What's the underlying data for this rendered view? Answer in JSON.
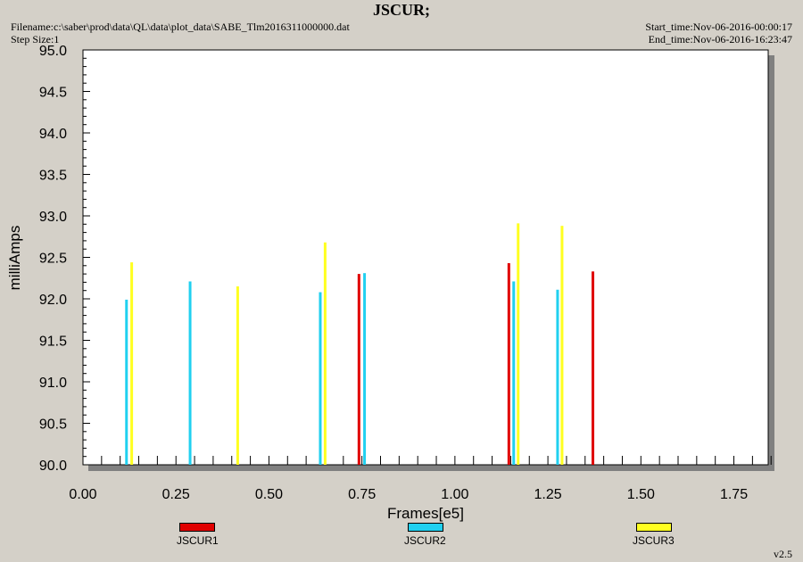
{
  "header": {
    "title": "JSCUR;",
    "filename": "Filename:c:\\saber\\prod\\data\\QL\\data\\plot_data\\SABE_Tlm2016311000000.dat",
    "step_size": "Step Size:1",
    "start_time": "Start_time:Nov-06-2016-00:00:17",
    "end_time": "End_time:Nov-06-2016-16:23:47",
    "version": "v2.5"
  },
  "colors": {
    "JSCUR1": "#e00000",
    "JSCUR2": "#20d0f0",
    "JSCUR3": "#ffff20",
    "plot_bg": "#ffffff",
    "window_bg": "#d4d0c8"
  },
  "chart_data": {
    "type": "bar",
    "xlabel": "Frames[e5]",
    "ylabel": "milliAmps",
    "xlim": [
      0.0,
      1.87
    ],
    "ylim": [
      90.0,
      95.0
    ],
    "x_ticks": [
      "0.00",
      "0.25",
      "0.50",
      "0.75",
      "1.00",
      "1.25",
      "1.50",
      "1.75"
    ],
    "y_ticks": [
      "90.0",
      "90.5",
      "91.0",
      "91.5",
      "92.0",
      "92.5",
      "93.0",
      "93.5",
      "94.0",
      "94.5",
      "95.0"
    ],
    "legend_position": "bottom",
    "series": [
      {
        "name": "JSCUR1",
        "points": [
          [
            0.742,
            92.3
          ],
          [
            1.145,
            92.43
          ],
          [
            1.371,
            92.33
          ]
        ]
      },
      {
        "name": "JSCUR2",
        "points": [
          [
            0.117,
            91.99
          ],
          [
            0.288,
            92.21
          ],
          [
            0.638,
            92.08
          ],
          [
            0.757,
            92.31
          ],
          [
            1.158,
            92.21
          ],
          [
            1.276,
            92.11
          ]
        ]
      },
      {
        "name": "JSCUR3",
        "points": [
          [
            0.131,
            92.44
          ],
          [
            0.416,
            92.15
          ],
          [
            0.651,
            92.68
          ],
          [
            1.17,
            92.91
          ],
          [
            1.288,
            92.88
          ]
        ]
      }
    ]
  }
}
